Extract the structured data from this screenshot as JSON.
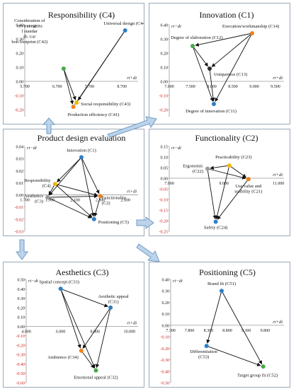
{
  "colors": {
    "blue": "#2e7fc7",
    "orange": "#f0821c",
    "yellow": "#f5b800",
    "green": "#4aa84a",
    "gray": "#9a9a9a",
    "dark": "#2b2b2b",
    "arrowFill": "#bcd3ea",
    "arrowStroke": "#6f9cc7",
    "border": "#9aa8b8",
    "negTick": "#d02020"
  },
  "panels": [
    {
      "title": "Responsibility (C4)",
      "ylabel": "ri−di",
      "xlabel": "ri+di",
      "xlim": [
        5.7,
        9.2
      ],
      "ylim": [
        -0.25,
        0.4
      ],
      "xticks": [
        "5.700",
        "6.700",
        "7.700",
        "8.700"
      ],
      "xtickvals": [
        5.7,
        6.7,
        7.7,
        8.7
      ],
      "yticks": [
        "0.40",
        "0.30",
        "0.20",
        "0.10",
        "0.00",
        "-0.10",
        "-0.20"
      ],
      "ytickvals": [
        0.4,
        0.3,
        0.2,
        0.1,
        0,
        -0.1,
        -0.2
      ],
      "nodes": [
        {
          "id": "C44",
          "label": "Universal design (C44)",
          "x": 8.8,
          "y": 0.36,
          "color": "blue"
        },
        {
          "id": "C42",
          "label": "Consideration of environmental standards /carbon footprint (C42)",
          "x": 6.9,
          "y": 0.09,
          "color": "green"
        },
        {
          "id": "C43",
          "label": "Social responsibility (C43)",
          "x": 7.3,
          "y": -0.15,
          "color": "yellow"
        },
        {
          "id": "C41",
          "label": "Production efficiency (C41)",
          "x": 7.2,
          "y": -0.18,
          "color": "orange"
        }
      ],
      "edges": [
        [
          "C44",
          "C43"
        ],
        [
          "C44",
          "C41"
        ],
        [
          "C42",
          "C43"
        ],
        [
          "C42",
          "C41"
        ]
      ]
    },
    {
      "title": "Innovation (C1)",
      "ylabel": "ri−di",
      "xlabel": "ri+di",
      "xlim": [
        7.0,
        9.7
      ],
      "ylim": [
        -0.25,
        0.4
      ],
      "xticks": [
        "7.000",
        "7.500",
        "8.000",
        "8.500",
        "9.000",
        "9.500"
      ],
      "xtickvals": [
        7.0,
        7.5,
        8.0,
        8.5,
        9.0,
        9.5
      ],
      "yticks": [
        "0.40",
        "0.30",
        "0.20",
        "0.10",
        "0.00",
        "-0.10",
        "-0.20"
      ],
      "ytickvals": [
        0.4,
        0.3,
        0.2,
        0.1,
        0,
        -0.1,
        -0.2
      ],
      "nodes": [
        {
          "id": "C14",
          "label": "Execution/workmanship (C14)",
          "x": 8.95,
          "y": 0.34,
          "color": "orange"
        },
        {
          "id": "C12",
          "label": "Degree of elaboration (C12)",
          "x": 7.55,
          "y": 0.25,
          "color": "green"
        },
        {
          "id": "C13",
          "label": "Uniqueness (C13)",
          "x": 7.95,
          "y": 0.09,
          "color": "dark"
        },
        {
          "id": "C11",
          "label": "Degree of innovation (C11)",
          "x": 8.05,
          "y": -0.16,
          "color": "blue"
        }
      ],
      "edges": [
        [
          "C14",
          "C12"
        ],
        [
          "C14",
          "C13"
        ],
        [
          "C14",
          "C11"
        ],
        [
          "C12",
          "C13"
        ],
        [
          "C12",
          "C11"
        ],
        [
          "C13",
          "C11"
        ]
      ]
    },
    {
      "title": "Product design evaluation",
      "ylabel": "ri−di",
      "xlabel": "ri+di",
      "xlim": [
        1.7,
        2.6
      ],
      "ylim": [
        -0.03,
        0.04
      ],
      "xticks": [
        "1.700",
        "1.900",
        "2.100",
        "2.300",
        "2.500"
      ],
      "xtickvals": [
        1.7,
        1.9,
        2.1,
        2.3,
        2.5
      ],
      "yticks": [
        "0.04",
        "0.03",
        "0.02",
        "0.01",
        "0.00",
        "-0.01",
        "-0.02",
        "-0.03"
      ],
      "ytickvals": [
        0.04,
        0.03,
        0.02,
        0.01,
        0,
        -0.01,
        -0.02,
        -0.03
      ],
      "nodes": [
        {
          "id": "C1",
          "label": "Innovation (C1)",
          "x": 2.15,
          "y": 0.031,
          "color": "blue"
        },
        {
          "id": "C4",
          "label": "Responsibility (C4)",
          "x": 1.94,
          "y": 0.009,
          "color": "yellow"
        },
        {
          "id": "C3",
          "label": "Aesthetics (C3)",
          "x": 1.88,
          "y": -0.002,
          "color": "gray"
        },
        {
          "id": "C2",
          "label": "Functionality (C2)",
          "x": 2.3,
          "y": -0.001,
          "color": "orange"
        },
        {
          "id": "C5",
          "label": "Positioning (C5)",
          "x": 2.25,
          "y": -0.02,
          "color": "blue"
        }
      ],
      "edges": [
        [
          "C1",
          "C4"
        ],
        [
          "C1",
          "C3"
        ],
        [
          "C1",
          "C2"
        ],
        [
          "C1",
          "C5"
        ],
        [
          "C4",
          "C3"
        ],
        [
          "C4",
          "C2"
        ],
        [
          "C4",
          "C5"
        ],
        [
          "C3",
          "C2"
        ],
        [
          "C3",
          "C5"
        ],
        [
          "C2",
          "C5"
        ]
      ]
    },
    {
      "title": "Functionality (C2)",
      "ylabel": "ri−di",
      "xlabel": "ri+di",
      "xlim": [
        7.0,
        11.2
      ],
      "ylim": [
        -0.25,
        0.15
      ],
      "xticks": [
        "7.000",
        "9.000",
        "11.000"
      ],
      "xtickvals": [
        7.0,
        9.0,
        11.0
      ],
      "yticks": [
        "0.15",
        "0.10",
        "0.05",
        "0.00",
        "-0.05",
        "-0.10",
        "-0.15",
        "-0.20",
        "-0.25"
      ],
      "ytickvals": [
        0.15,
        0.1,
        0.05,
        0,
        -0.05,
        -0.1,
        -0.15,
        -0.2,
        -0.25
      ],
      "nodes": [
        {
          "id": "C23",
          "label": "Practicability (C23)",
          "x": 9.2,
          "y": 0.06,
          "color": "yellow"
        },
        {
          "id": "C22",
          "label": "Ergonomic (C22)",
          "x": 8.4,
          "y": 0.045,
          "color": "gray"
        },
        {
          "id": "C21",
          "label": "Use value and usability (C21)",
          "x": 9.9,
          "y": -0.004,
          "color": "orange"
        },
        {
          "id": "C24",
          "label": "Safety (C24)",
          "x": 8.7,
          "y": -0.205,
          "color": "blue"
        }
      ],
      "edges": [
        [
          "C23",
          "C22"
        ],
        [
          "C23",
          "C21"
        ],
        [
          "C23",
          "C24"
        ],
        [
          "C22",
          "C21"
        ],
        [
          "C22",
          "C24"
        ],
        [
          "C21",
          "C24"
        ]
      ]
    },
    {
      "title": "Aesthetics (C3)",
      "ylabel": "ri−di",
      "xlabel": "ri+di",
      "xlim": [
        4.0,
        10.5
      ],
      "ylim": [
        -0.6,
        0.5
      ],
      "xticks": [
        "4.000",
        "6.000",
        "8.000",
        "10.000"
      ],
      "xtickvals": [
        4.0,
        6.0,
        8.0,
        10.0
      ],
      "yticks": [
        "0.50",
        "0.40",
        "0.30",
        "0.20",
        "0.10",
        "0.00",
        "-0.10",
        "-0.20",
        "-0.30",
        "-0.40",
        "-0.50",
        "-0.60"
      ],
      "ytickvals": [
        0.5,
        0.4,
        0.3,
        0.2,
        0.1,
        0,
        -0.1,
        -0.2,
        -0.3,
        -0.4,
        -0.5,
        -0.6
      ],
      "nodes": [
        {
          "id": "C33",
          "label": "Spatial concept (C33)",
          "x": 6.0,
          "y": 0.4,
          "color": "blue"
        },
        {
          "id": "C31",
          "label": "Aesthetic appeal (C31)",
          "x": 8.9,
          "y": 0.2,
          "color": "blue"
        },
        {
          "id": "C34",
          "label": "Ambience (C34)",
          "x": 7.2,
          "y": -0.26,
          "color": "orange"
        },
        {
          "id": "C32",
          "label": "Emotional appeal (C32)",
          "x": 8.05,
          "y": -0.47,
          "color": "green"
        }
      ],
      "edges": [
        [
          "C33",
          "C31"
        ],
        [
          "C33",
          "C34"
        ],
        [
          "C33",
          "C32"
        ],
        [
          "C31",
          "C34"
        ],
        [
          "C31",
          "C32"
        ],
        [
          "C34",
          "C32"
        ]
      ]
    },
    {
      "title": "Positioning (C5)",
      "ylabel": "ri−di",
      "xlabel": "ri+di",
      "xlim": [
        7.3,
        10.3
      ],
      "ylim": [
        -0.5,
        0.4
      ],
      "xticks": [
        "7.300",
        "7.800",
        "8.300",
        "8.800",
        "9.300",
        "9.800"
      ],
      "xtickvals": [
        7.3,
        7.8,
        8.3,
        8.8,
        9.3,
        9.8
      ],
      "yticks": [
        "0.40",
        "0.30",
        "0.20",
        "0.10",
        "0.00",
        "-0.10",
        "-0.20",
        "-0.30",
        "-0.40",
        "-0.50"
      ],
      "ytickvals": [
        0.4,
        0.3,
        0.2,
        0.1,
        0,
        -0.1,
        -0.2,
        -0.3,
        -0.4,
        -0.5
      ],
      "nodes": [
        {
          "id": "C51",
          "label": "Brand fit (C51)",
          "x": 8.65,
          "y": 0.3,
          "color": "blue"
        },
        {
          "id": "C53",
          "label": "Differentiation (C53)",
          "x": 8.25,
          "y": -0.18,
          "color": "blue"
        },
        {
          "id": "C52",
          "label": "Target group fit (C52)",
          "x": 9.75,
          "y": -0.36,
          "color": "green"
        }
      ],
      "edges": [
        [
          "C51",
          "C53"
        ],
        [
          "C51",
          "C52"
        ],
        [
          "C53",
          "C52"
        ]
      ]
    }
  ]
}
